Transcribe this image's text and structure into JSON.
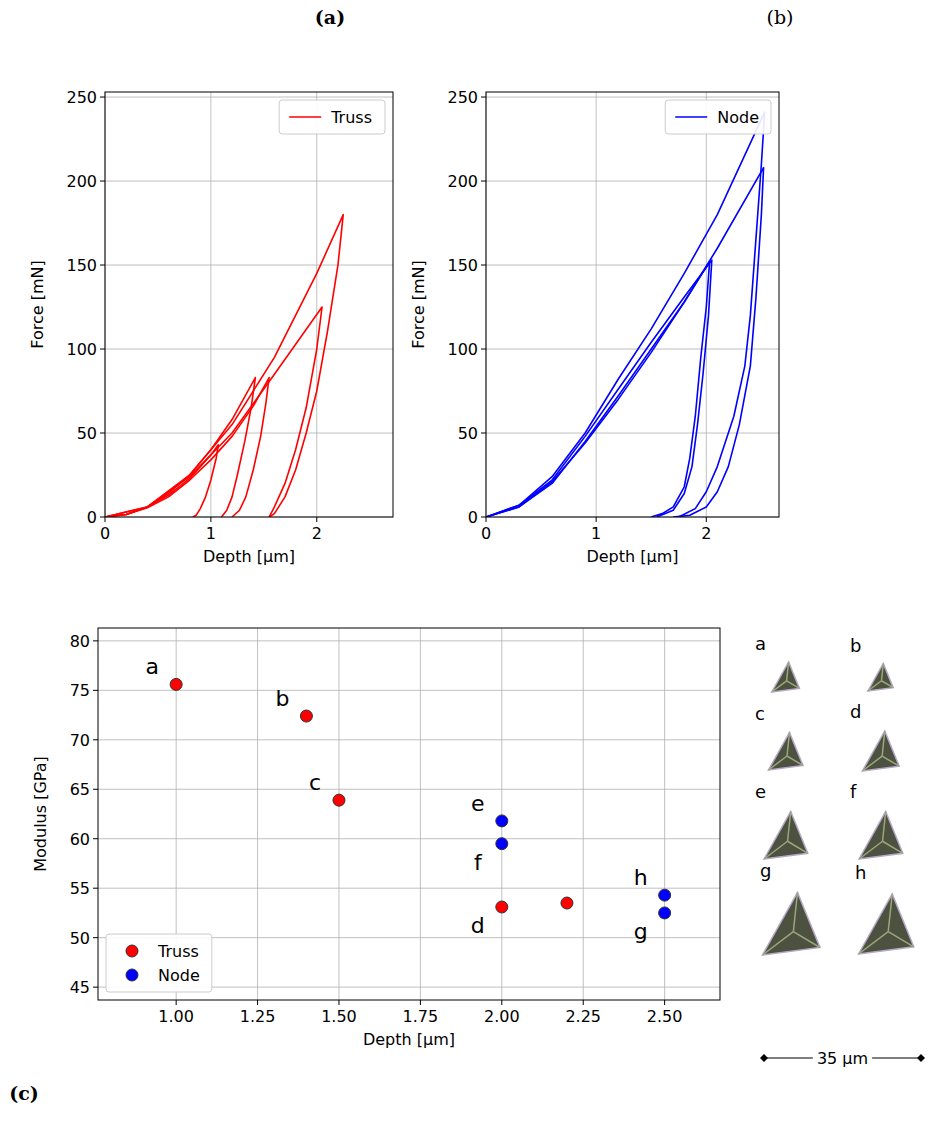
{
  "chart_data": [
    {
      "type": "line",
      "panel_label": "(a)",
      "x_label": "Depth [µm]",
      "y_label": "Force [mN]",
      "xlim": [
        0,
        2.72
      ],
      "ylim": [
        0,
        253
      ],
      "xticks": [
        0,
        1,
        2
      ],
      "yticks": [
        0,
        50,
        100,
        150,
        200,
        250
      ],
      "grid": true,
      "legend": "upper right",
      "series": [
        {
          "name": "Truss",
          "color": "#ff0000",
          "x": [
            0,
            0.2,
            0.4,
            0.6,
            0.8,
            1.0,
            1.07,
            1.05,
            1.0,
            0.95,
            0.9,
            0.86,
            0.83
          ],
          "values": [
            0,
            1.5,
            6,
            13,
            23,
            37,
            43,
            35,
            22,
            12,
            5,
            1,
            0
          ]
        },
        {
          "name": "Truss",
          "color": "#ff0000",
          "x": [
            0,
            0.2,
            0.4,
            0.6,
            0.8,
            1.0,
            1.2,
            1.42,
            1.38,
            1.32,
            1.25,
            1.2,
            1.15,
            1.1
          ],
          "values": [
            0,
            1.5,
            6,
            14,
            25,
            40,
            58,
            83,
            65,
            45,
            25,
            12,
            4,
            0
          ]
        },
        {
          "name": "Truss",
          "color": "#ff0000",
          "x": [
            0,
            0.2,
            0.4,
            0.6,
            0.8,
            1.0,
            1.2,
            1.4,
            1.55,
            1.52,
            1.47,
            1.4,
            1.33,
            1.27,
            1.2
          ],
          "values": [
            0,
            1.5,
            5.5,
            12,
            22,
            34,
            48,
            66,
            83,
            68,
            48,
            28,
            12,
            4,
            0
          ]
        },
        {
          "name": "Truss",
          "color": "#ff0000",
          "x": [
            0,
            0.4,
            0.8,
            1.2,
            1.6,
            2.05,
            2.0,
            1.9,
            1.8,
            1.7,
            1.6,
            1.55
          ],
          "values": [
            0,
            6,
            24,
            50,
            85,
            125,
            100,
            65,
            40,
            20,
            6,
            0
          ]
        },
        {
          "name": "Truss",
          "color": "#ff0000",
          "x": [
            0,
            0.4,
            0.8,
            1.2,
            1.6,
            2.0,
            2.25,
            2.2,
            2.1,
            2.0,
            1.9,
            1.8,
            1.7,
            1.6,
            1.55
          ],
          "values": [
            0,
            6,
            25,
            55,
            95,
            145,
            180,
            150,
            110,
            75,
            50,
            28,
            12,
            2,
            0
          ]
        }
      ]
    },
    {
      "type": "line",
      "panel_label": "(b)",
      "x_label": "Depth [µm]",
      "y_label": "Force [mN]",
      "xlim": [
        0,
        2.66
      ],
      "ylim": [
        0,
        253
      ],
      "xticks": [
        0,
        1,
        2
      ],
      "yticks": [
        0,
        50,
        100,
        150,
        200,
        250
      ],
      "grid": true,
      "legend": "upper right",
      "series": [
        {
          "name": "Node",
          "color": "#0000ff",
          "x": [
            0,
            0.3,
            0.6,
            0.9,
            1.2,
            1.5,
            1.8,
            2.03,
            2.0,
            1.95,
            1.9,
            1.85,
            1.8,
            1.7,
            1.6,
            1.5
          ],
          "values": [
            0,
            6,
            20,
            45,
            72,
            100,
            128,
            152,
            125,
            95,
            60,
            35,
            18,
            6,
            2,
            0
          ]
        },
        {
          "name": "Node",
          "color": "#0000ff",
          "x": [
            0,
            0.3,
            0.6,
            0.9,
            1.2,
            1.5,
            1.8,
            2.05,
            2.02,
            1.97,
            1.92,
            1.87,
            1.8,
            1.7,
            1.55
          ],
          "values": [
            0,
            7,
            22,
            48,
            76,
            104,
            131,
            153,
            120,
            85,
            55,
            30,
            14,
            4,
            0
          ]
        },
        {
          "name": "Node",
          "color": "#0000ff",
          "x": [
            0,
            0.3,
            0.6,
            0.9,
            1.2,
            1.5,
            1.8,
            2.1,
            2.52,
            2.5,
            2.45,
            2.4,
            2.3,
            2.2,
            2.1,
            2.0,
            1.85,
            1.7
          ],
          "values": [
            0,
            6,
            21,
            44,
            70,
            98,
            128,
            160,
            208,
            180,
            130,
            90,
            55,
            30,
            15,
            6,
            1,
            0
          ]
        },
        {
          "name": "Node",
          "color": "#0000ff",
          "x": [
            0,
            0.3,
            0.6,
            0.9,
            1.2,
            1.5,
            1.8,
            2.1,
            2.53,
            2.5,
            2.45,
            2.4,
            2.35,
            2.25,
            2.1,
            2.0,
            1.9,
            1.75
          ],
          "values": [
            0,
            7,
            24,
            50,
            82,
            112,
            145,
            180,
            241,
            210,
            165,
            120,
            90,
            60,
            30,
            15,
            5,
            0
          ]
        }
      ]
    },
    {
      "type": "scatter",
      "panel_label": "(c)",
      "x_label": "Depth [µm]",
      "y_label": "Modulus [GPa]",
      "xlim": [
        0.76,
        2.67
      ],
      "ylim": [
        43.7,
        81.3
      ],
      "xticks": [
        {
          "value": 1,
          "label": "1.00"
        },
        {
          "value": 1.25,
          "label": "1.25"
        },
        {
          "value": 1.5,
          "label": "1.50"
        },
        {
          "value": 1.75,
          "label": "1.75"
        },
        {
          "value": 2,
          "label": "2.00"
        },
        {
          "value": 2.25,
          "label": "2.25"
        },
        {
          "value": 2.5,
          "label": "2.50"
        }
      ],
      "yticks": [
        45,
        50,
        55,
        60,
        65,
        70,
        75,
        80
      ],
      "grid": true,
      "legend": "lower left",
      "series": [
        {
          "name": "Truss",
          "color": "#ff0000",
          "marker": "circle",
          "x": [
            1.0,
            1.4,
            1.5,
            2.0,
            2.2
          ],
          "values": [
            75.6,
            72.4,
            63.9,
            53.1,
            53.5
          ],
          "point_labels": [
            "a",
            "b",
            "c",
            "d",
            null
          ]
        },
        {
          "name": "Node",
          "color": "#0000ff",
          "marker": "circle",
          "x": [
            2.0,
            2.0,
            2.5,
            2.5
          ],
          "values": [
            61.8,
            59.5,
            54.3,
            52.5
          ],
          "point_labels": [
            "e",
            "f",
            "h",
            "g"
          ]
        }
      ]
    }
  ],
  "indent_images": {
    "labels": [
      "a",
      "b",
      "c",
      "d",
      "e",
      "f",
      "g",
      "h"
    ],
    "scale_bar": "35 µm"
  }
}
